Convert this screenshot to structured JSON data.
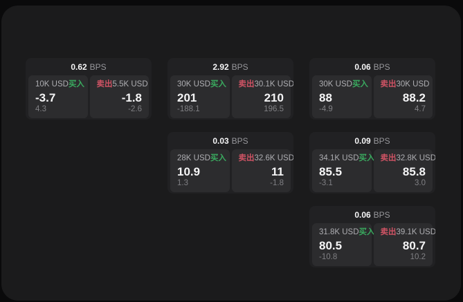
{
  "labels": {
    "bps_unit": "BPS",
    "buy": "买入",
    "sell": "卖出"
  },
  "colors": {
    "background": "#0a0a0b",
    "surface": "#1b1b1c",
    "card": "#212123",
    "panel": "#2c2c2e",
    "buy": "#3aaa5f",
    "sell": "#cf5364",
    "value_text": "#f5f5f6",
    "muted_text": "#808084"
  },
  "cards": [
    {
      "bps": "0.62",
      "row": 1,
      "col": 1,
      "buy": {
        "amount": "10K USD",
        "value": "-3.7",
        "delta": "4.3"
      },
      "sell": {
        "amount": "5.5K USD",
        "value": "-1.8",
        "delta": "-2.6"
      }
    },
    {
      "bps": "2.92",
      "row": 1,
      "col": 2,
      "buy": {
        "amount": "30K USD",
        "value": "201",
        "delta": "-188.1"
      },
      "sell": {
        "amount": "30.1K USD",
        "value": "210",
        "delta": "196.5"
      }
    },
    {
      "bps": "0.06",
      "row": 1,
      "col": 3,
      "buy": {
        "amount": "30K USD",
        "value": "88",
        "delta": "-4.9"
      },
      "sell": {
        "amount": "30K USD",
        "value": "88.2",
        "delta": "4.7"
      }
    },
    {
      "bps": "0.03",
      "row": 2,
      "col": 2,
      "buy": {
        "amount": "28K USD",
        "value": "10.9",
        "delta": "1.3"
      },
      "sell": {
        "amount": "32.6K USD",
        "value": "11",
        "delta": "-1.8"
      }
    },
    {
      "bps": "0.09",
      "row": 2,
      "col": 3,
      "buy": {
        "amount": "34.1K USD",
        "value": "85.5",
        "delta": "-3.1"
      },
      "sell": {
        "amount": "32.8K USD",
        "value": "85.8",
        "delta": "3.0"
      }
    },
    {
      "bps": "0.06",
      "row": 3,
      "col": 3,
      "buy": {
        "amount": "31.8K USD",
        "value": "80.5",
        "delta": "-10.8"
      },
      "sell": {
        "amount": "39.1K USD",
        "value": "80.7",
        "delta": "10.2"
      }
    }
  ]
}
